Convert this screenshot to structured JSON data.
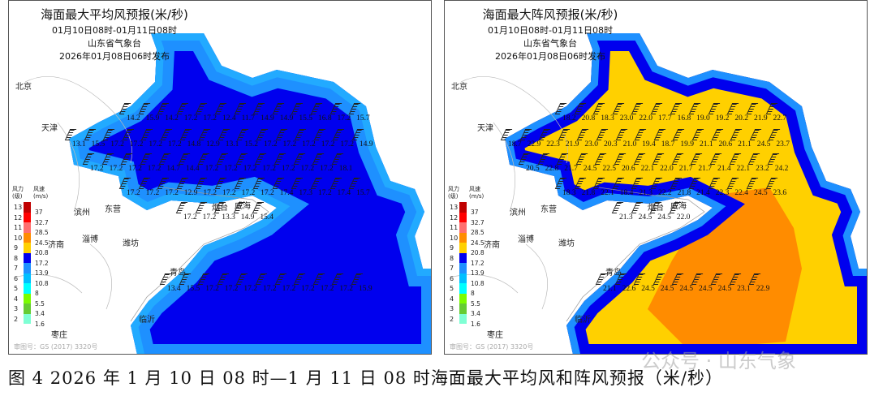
{
  "panels": [
    {
      "title": "海面最大平均风预报(米/秒)",
      "period": "01月10日08时-01月11日08时",
      "issuer": "山东省气象台",
      "issued": "2026年01月08日06时发布",
      "colors": {
        "outer": "#22aaff",
        "mid": "#1e90ff",
        "inner": "#0000ee",
        "hot": "#0000cc"
      },
      "rows": [
        [
          "14.2",
          "15.9",
          "14.2",
          "17.2",
          "17.2",
          "12.4",
          "11.7",
          "14.9",
          "14.9",
          "15.5",
          "16.8",
          "17.2",
          "15.7"
        ],
        [
          "13.1",
          "15.5",
          "17.2",
          "17.2",
          "17.2",
          "17.2",
          "14.8",
          "12.9",
          "13.1",
          "15.2",
          "17.2",
          "17.2",
          "17.2",
          "17.2",
          "17.2",
          "14.9"
        ],
        [
          "17.2",
          "17.2",
          "17.2",
          "17.2",
          "14.7",
          "14.4",
          "17.2",
          "17.2",
          "17.2",
          "17.2",
          "17.2",
          "17.2",
          "17.2",
          "18.1"
        ],
        [
          "17.2",
          "17.2",
          "17.2",
          "12.9",
          "17.2",
          "17.2",
          "17.2",
          "17.2",
          "17.4",
          "17.3",
          "17.2",
          "17.4",
          "15.7"
        ],
        [
          "17.2",
          "17.2",
          "13.3",
          "14.9",
          "15.4"
        ],
        [
          "13.4",
          "15.5",
          "17.2",
          "17.2",
          "17.2",
          "17.2",
          "17.2",
          "17.2",
          "17.2",
          "17.2",
          "15.9"
        ]
      ]
    },
    {
      "title": "海面最大阵风预报(米/秒)",
      "period": "01月10日08时-01月11日08时",
      "issuer": "山东省气象台",
      "issued": "2026年01月08日06时发布",
      "colors": {
        "outer": "#1e90ff",
        "mid": "#0000ee",
        "inner": "#ffd000",
        "hot": "#ff8c00"
      },
      "rows": [
        [
          "18.2",
          "20.8",
          "18.3",
          "23.0",
          "22.0",
          "17.7",
          "16.8",
          "19.0",
          "19.2",
          "20.2",
          "21.9",
          "22.7"
        ],
        [
          "18.7",
          "22.9",
          "22.3",
          "21.9",
          "23.0",
          "20.3",
          "21.0",
          "19.4",
          "18.7",
          "19.9",
          "21.1",
          "20.6",
          "21.1",
          "24.5",
          "23.7"
        ],
        [
          "20.5",
          "22.8",
          "21.7",
          "24.5",
          "22.5",
          "20.6",
          "22.1",
          "22.0",
          "21.7",
          "21.7",
          "21.4",
          "22.1",
          "23.2",
          "24.2"
        ],
        [
          "18.3",
          "21.8",
          "22.1",
          "18.4",
          "21.3",
          "22.2",
          "21.8",
          "21.4",
          "22.3",
          "22.4",
          "24.5",
          "23.6"
        ],
        [
          "21.3",
          "24.5",
          "24.5",
          "22.0"
        ],
        [
          "21.1",
          "22.6",
          "24.5",
          "24.5",
          "24.5",
          "24.5",
          "24.5",
          "23.1",
          "22.9"
        ]
      ]
    }
  ],
  "cities": {
    "beijing": "北京",
    "tianjin": "天津",
    "dongying": "东营",
    "binzhou": "滨州",
    "jinan": "济南",
    "zibo": "淄博",
    "weifang": "潍坊",
    "yantai": "烟台",
    "weihai": "威海",
    "qingdao": "青岛",
    "linyi": "临沂",
    "zaozhuang": "枣庄"
  },
  "legend": {
    "level_header": "风力(级)",
    "speed_header": "风速(m/s)",
    "levels": [
      "13",
      "12",
      "11",
      "10",
      "9",
      "8",
      "7",
      "6",
      "5",
      "4",
      "3",
      "2"
    ],
    "speeds": [
      "37",
      "32.7",
      "28.5",
      "24.5",
      "20.8",
      "17.2",
      "13.9",
      "10.8",
      "8",
      "5.5",
      "3.4",
      "1.6"
    ],
    "colors": [
      "#c00000",
      "#ff0000",
      "#ff6f6f",
      "#ff8c00",
      "#ffd000",
      "#0000ee",
      "#1e90ff",
      "#00bfff",
      "#00ffff",
      "#7cfc00",
      "#66cc33",
      "#7fffd4"
    ]
  },
  "copyright": "审图号：GS (2017) 3320号",
  "caption": "图 4  2026 年 1 月 10 日 08 时—1 月 11 日 08 时海面最大平均风和阵风预报（米/秒）",
  "watermark": "公众号 · 山东气象"
}
